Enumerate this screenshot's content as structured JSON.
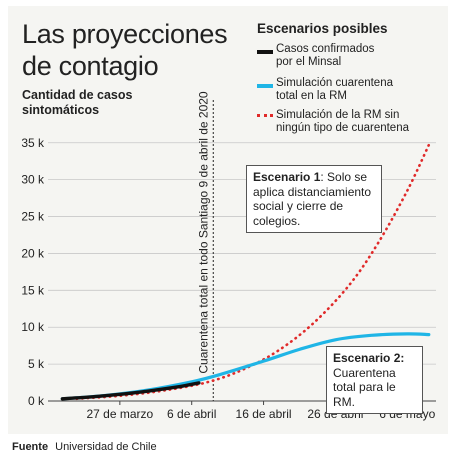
{
  "header": {
    "title_line1": "Las proyecciones",
    "title_line2": "de contagio"
  },
  "axis": {
    "ylabel_line1": "Cantidad de casos",
    "ylabel_line2": "sintomáticos"
  },
  "legend": {
    "title": "Escenarios posibles",
    "items": [
      {
        "label_line1": "Casos confirmados",
        "label_line2": "por el Minsal",
        "color": "#111111",
        "style": "solid"
      },
      {
        "label_line1": "Simulación cuarentena",
        "label_line2": "total en la RM",
        "color": "#1fb5e6",
        "style": "solid"
      },
      {
        "label_line1": "Simulación de la RM sin",
        "label_line2": "ningún tipo de cuarentena",
        "color": "#e02a2a",
        "style": "dotted"
      }
    ]
  },
  "callouts": {
    "scenario1": {
      "title": "Escenario 1",
      "text": ": Solo se aplica distanciamiento social y cierre de colegios."
    },
    "scenario2": {
      "title": "Escenario 2:",
      "text": "Cuarentena total para le RM."
    }
  },
  "vline_label": "Cuarentena total en todo Santiago 9 de abril de 2020",
  "source": {
    "label": "Fuente",
    "text": "Universidad de Chile"
  },
  "chart_data": {
    "type": "line",
    "x_unit": "date",
    "xlim": [
      "2020-03-17",
      "2020-05-10"
    ],
    "x_ticks": [
      {
        "date": "2020-03-27",
        "label": "27 de marzo"
      },
      {
        "date": "2020-04-06",
        "label": "6 de abril"
      },
      {
        "date": "2020-04-16",
        "label": "16 de abril"
      },
      {
        "date": "2020-04-26",
        "label": "26 de abril"
      },
      {
        "date": "2020-05-06",
        "label": "6 de mayo"
      }
    ],
    "y_ticks": [
      {
        "value": 0,
        "label": "0 k"
      },
      {
        "value": 5000,
        "label": "5 k"
      },
      {
        "value": 10000,
        "label": "10 k"
      },
      {
        "value": 15000,
        "label": "15 k"
      },
      {
        "value": 20000,
        "label": "20 k"
      },
      {
        "value": 25000,
        "label": "25 k"
      },
      {
        "value": 30000,
        "label": "30 k"
      },
      {
        "value": 35000,
        "label": "35 k"
      }
    ],
    "ylim": [
      0,
      37000
    ],
    "grid": "horizontal",
    "vline": {
      "date": "2020-04-09"
    },
    "series": [
      {
        "name": "Casos confirmados por el Minsal",
        "color": "#111111",
        "style": "solid",
        "points": [
          [
            "2020-03-19",
            300
          ],
          [
            "2020-03-23",
            550
          ],
          [
            "2020-03-27",
            900
          ],
          [
            "2020-03-31",
            1350
          ],
          [
            "2020-04-04",
            1900
          ],
          [
            "2020-04-07",
            2450
          ]
        ]
      },
      {
        "name": "Simulación cuarentena total en la RM",
        "color": "#1fb5e6",
        "style": "solid",
        "points": [
          [
            "2020-03-19",
            300
          ],
          [
            "2020-03-25",
            750
          ],
          [
            "2020-03-31",
            1500
          ],
          [
            "2020-04-06",
            2600
          ],
          [
            "2020-04-10",
            3600
          ],
          [
            "2020-04-16",
            5400
          ],
          [
            "2020-04-21",
            7000
          ],
          [
            "2020-04-26",
            8300
          ],
          [
            "2020-05-01",
            8900
          ],
          [
            "2020-05-06",
            9100
          ],
          [
            "2020-05-09",
            9000
          ]
        ]
      },
      {
        "name": "Simulación de la RM sin ningún tipo de cuarentena",
        "color": "#e02a2a",
        "style": "dotted",
        "points": [
          [
            "2020-03-21",
            300
          ],
          [
            "2020-03-27",
            700
          ],
          [
            "2020-04-02",
            1400
          ],
          [
            "2020-04-08",
            2500
          ],
          [
            "2020-04-13",
            4200
          ],
          [
            "2020-04-18",
            6800
          ],
          [
            "2020-04-23",
            10600
          ],
          [
            "2020-04-28",
            15800
          ],
          [
            "2020-05-02",
            21500
          ],
          [
            "2020-05-06",
            28500
          ],
          [
            "2020-05-09",
            34700
          ]
        ]
      }
    ]
  }
}
